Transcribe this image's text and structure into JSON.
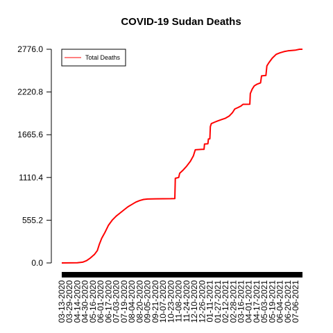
{
  "chart_data": {
    "type": "line",
    "title": "COVID-19 Sudan Deaths",
    "xlabel": "",
    "ylabel": "",
    "ylim": [
      0.0,
      2776.0
    ],
    "yticks": [
      "0.0",
      "555.2",
      "1110.4",
      "1665.6",
      "2220.8",
      "2776.0"
    ],
    "xtick_labels": [
      "03-13-2020",
      "03-29-2020",
      "04-14-2020",
      "04-30-2020",
      "05-16-2020",
      "06-01-2020",
      "06-17-2020",
      "07-03-2020",
      "07-19-2020",
      "08-04-2020",
      "08-20-2020",
      "09-05-2020",
      "09-21-2020",
      "10-07-2020",
      "10-23-2020",
      "11-08-2020",
      "11-24-2020",
      "12-10-2020",
      "12-26-2020",
      "01-11-2021",
      "01-27-2021",
      "02-12-2021",
      "02-28-2021",
      "03-16-2021",
      "04-01-2021",
      "04-17-2021",
      "05-03-2021",
      "05-19-2021",
      "06-04-2021",
      "06-20-2021",
      "07-06-2021"
    ],
    "x_start": "03-13-2020",
    "x_end": "07-20-2021",
    "legend": {
      "position": "top-left",
      "entries": [
        "Total Deaths"
      ]
    },
    "grid": false,
    "series": [
      {
        "name": "Total Deaths",
        "color": "#ff0000",
        "points": [
          [
            "03-13-2020",
            0
          ],
          [
            "04-14-2020",
            2
          ],
          [
            "04-25-2020",
            10
          ],
          [
            "05-03-2020",
            30
          ],
          [
            "05-11-2020",
            65
          ],
          [
            "05-19-2020",
            110
          ],
          [
            "05-25-2020",
            160
          ],
          [
            "05-29-2020",
            240
          ],
          [
            "06-03-2020",
            320
          ],
          [
            "06-10-2020",
            400
          ],
          [
            "06-17-2020",
            490
          ],
          [
            "06-25-2020",
            560
          ],
          [
            "07-03-2020",
            610
          ],
          [
            "07-11-2020",
            650
          ],
          [
            "07-19-2020",
            690
          ],
          [
            "07-27-2020",
            730
          ],
          [
            "08-04-2020",
            760
          ],
          [
            "08-12-2020",
            790
          ],
          [
            "08-20-2020",
            810
          ],
          [
            "08-28-2020",
            825
          ],
          [
            "09-05-2020",
            830
          ],
          [
            "09-21-2020",
            833
          ],
          [
            "10-07-2020",
            834
          ],
          [
            "10-23-2020",
            835
          ],
          [
            "10-31-2020",
            836
          ],
          [
            "11-01-2020",
            1100
          ],
          [
            "11-08-2020",
            1110
          ],
          [
            "11-10-2020",
            1165
          ],
          [
            "11-16-2020",
            1200
          ],
          [
            "11-24-2020",
            1255
          ],
          [
            "12-02-2020",
            1320
          ],
          [
            "12-08-2020",
            1390
          ],
          [
            "12-10-2020",
            1430
          ],
          [
            "12-12-2020",
            1470
          ],
          [
            "12-26-2020",
            1475
          ],
          [
            "12-30-2020",
            1475
          ],
          [
            "12-31-2020",
            1545
          ],
          [
            "01-07-2021",
            1548
          ],
          [
            "01-08-2021",
            1610
          ],
          [
            "01-11-2021",
            1612
          ],
          [
            "01-12-2021",
            1770
          ],
          [
            "01-14-2021",
            1810
          ],
          [
            "01-21-2021",
            1830
          ],
          [
            "01-27-2021",
            1845
          ],
          [
            "02-03-2021",
            1860
          ],
          [
            "02-12-2021",
            1880
          ],
          [
            "02-20-2021",
            1910
          ],
          [
            "02-26-2021",
            1950
          ],
          [
            "03-03-2021",
            2000
          ],
          [
            "03-10-2021",
            2020
          ],
          [
            "03-16-2021",
            2040
          ],
          [
            "03-20-2021",
            2060
          ],
          [
            "04-03-2021",
            2062
          ],
          [
            "04-04-2021",
            2200
          ],
          [
            "04-08-2021",
            2260
          ],
          [
            "04-12-2021",
            2300
          ],
          [
            "04-17-2021",
            2320
          ],
          [
            "04-25-2021",
            2340
          ],
          [
            "04-27-2021",
            2430
          ],
          [
            "05-06-2021",
            2435
          ],
          [
            "05-08-2021",
            2560
          ],
          [
            "05-12-2021",
            2600
          ],
          [
            "05-19-2021",
            2660
          ],
          [
            "05-27-2021",
            2710
          ],
          [
            "06-04-2021",
            2730
          ],
          [
            "06-12-2021",
            2745
          ],
          [
            "06-20-2021",
            2755
          ],
          [
            "06-28-2021",
            2760
          ],
          [
            "07-06-2021",
            2765
          ],
          [
            "07-14-2021",
            2776
          ],
          [
            "07-20-2021",
            2776
          ]
        ]
      }
    ]
  }
}
